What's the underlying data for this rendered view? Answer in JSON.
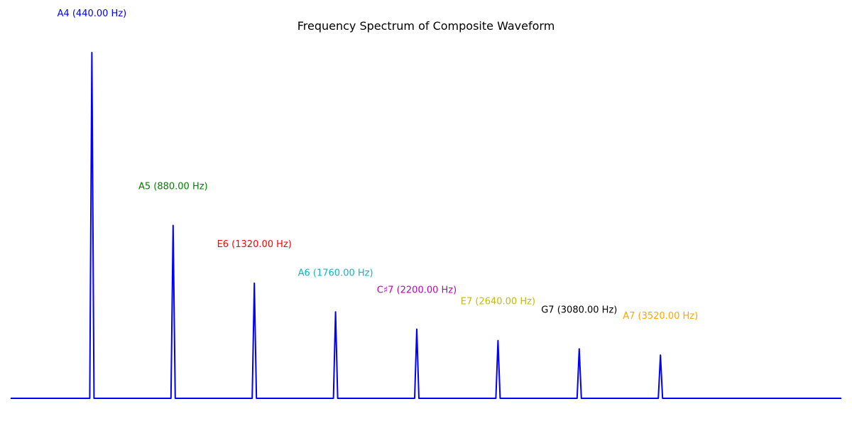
{
  "chart_data": {
    "type": "line",
    "title": "Frequency Spectrum of Composite Waveform",
    "xlabel": "",
    "ylabel": "",
    "axes_visible": false,
    "grid": false,
    "xlim": [
      0,
      4500
    ],
    "ylim": [
      0,
      1.0
    ],
    "line_color": "#0000ff",
    "series": [
      {
        "peaks": [
          {
            "note": "A4",
            "freq": 440.0,
            "amplitude": 1.0,
            "label": "A4 (440.00 Hz)",
            "color": "#0000ff"
          },
          {
            "note": "A5",
            "freq": 880.0,
            "amplitude": 0.5,
            "label": "A5 (880.00 Hz)",
            "color": "#008000"
          },
          {
            "note": "E6",
            "freq": 1320.0,
            "amplitude": 0.333,
            "label": "E6 (1320.00 Hz)",
            "color": "#ff0000"
          },
          {
            "note": "A6",
            "freq": 1760.0,
            "amplitude": 0.25,
            "label": "A6 (1760.00 Hz)",
            "color": "#00bfbf"
          },
          {
            "note": "C♯7",
            "freq": 2200.0,
            "amplitude": 0.2,
            "label": "C♯7 (2200.00 Hz)",
            "color": "#bf00bf"
          },
          {
            "note": "E7",
            "freq": 2640.0,
            "amplitude": 0.167,
            "label": "E7 (2640.00 Hz)",
            "color": "#bfbf00"
          },
          {
            "note": "G7",
            "freq": 3080.0,
            "amplitude": 0.143,
            "label": "G7 (3080.00 Hz)",
            "color": "#000000"
          },
          {
            "note": "A7",
            "freq": 3520.0,
            "amplitude": 0.125,
            "label": "A7 (3520.00 Hz)",
            "color": "#ffa500"
          }
        ]
      }
    ]
  }
}
